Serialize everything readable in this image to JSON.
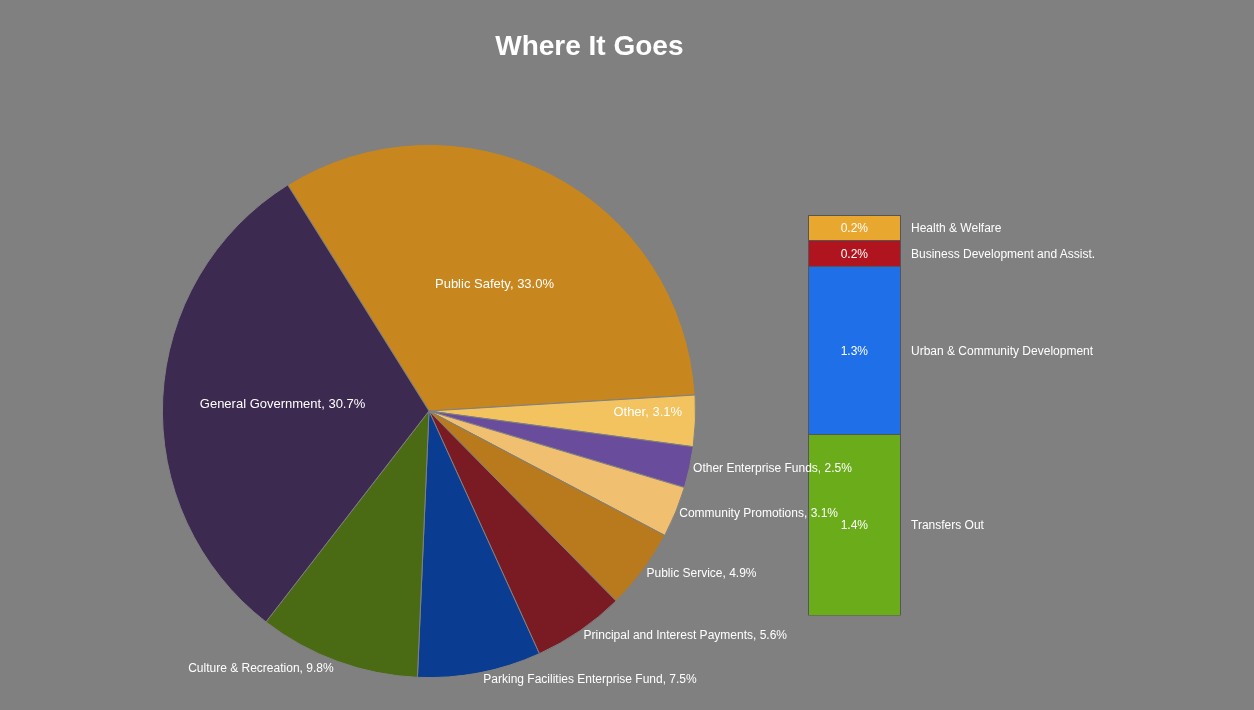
{
  "chart_data": [
    {
      "type": "pie",
      "title": "Where It Goes",
      "categories": [
        "Public Safety",
        "Other",
        "Other Enterprise Funds",
        "Community Promotions",
        "Public Service",
        "Principal and Interest Payments",
        "Parking Facilities Enterprise Fund",
        "Culture & Recreation",
        "General Government"
      ],
      "values": [
        33.0,
        3.1,
        2.5,
        3.1,
        4.9,
        5.6,
        7.5,
        9.8,
        30.7
      ],
      "value_labels": [
        "33.0%",
        "3.1%",
        "2.5%",
        "3.1%",
        "4.9%",
        "5.6%",
        "7.5%",
        "9.8%",
        "30.7%"
      ],
      "colors": [
        "#c8861e",
        "#f2c35e",
        "#6a4c9c",
        "#f0c070",
        "#b87a1c",
        "#7a1a22",
        "#0a3d91",
        "#4a6a14",
        "#3d2a50"
      ]
    },
    {
      "type": "bar",
      "stacked": true,
      "categories": [
        null
      ],
      "series": [
        {
          "name": "Transfers Out",
          "color": "#6aac1a",
          "values": [
            1.4
          ],
          "value_labels": [
            "1.4%"
          ]
        },
        {
          "name": "Urban & Community Development",
          "color": "#1f6fe8",
          "values": [
            1.3
          ],
          "value_labels": [
            "1.3%"
          ]
        },
        {
          "name": "Business Development and Assist.",
          "color": "#b0141e",
          "values": [
            0.2
          ],
          "value_labels": [
            "0.2%"
          ]
        },
        {
          "name": "Health & Welfare",
          "color": "#e8a830",
          "values": [
            0.2
          ],
          "value_labels": [
            "0.2%"
          ]
        }
      ]
    }
  ]
}
